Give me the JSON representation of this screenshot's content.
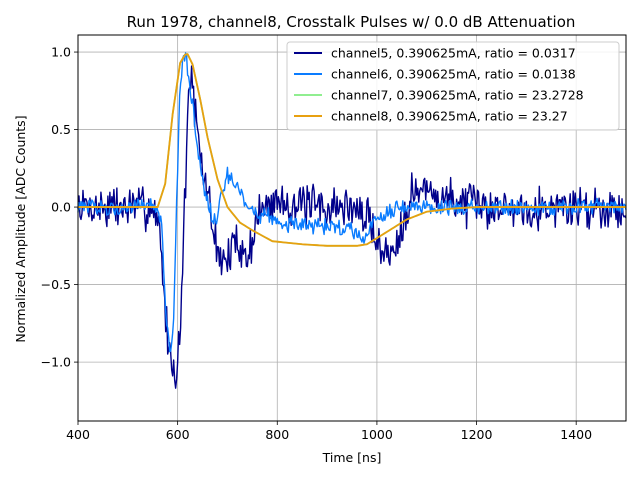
{
  "chart_data": {
    "type": "line",
    "title": "Run 1978, channel8, Crosstalk Pulses w/ 0.0 dB Attenuation",
    "xlabel": "Time [ns]",
    "ylabel": "Normalized Amplitude [ADC Counts]",
    "xlim": [
      400,
      1500
    ],
    "ylim": [
      -1.38,
      1.11
    ],
    "xticks": [
      400,
      600,
      800,
      1000,
      1200,
      1400
    ],
    "xtick_labels": [
      "400",
      "600",
      "800",
      "1000",
      "1200",
      "1400"
    ],
    "yticks": [
      -1.0,
      -0.5,
      0.0,
      0.5,
      1.0
    ],
    "ytick_labels": [
      "−1.0",
      "−0.5",
      "0.0",
      "0.5",
      "1.0"
    ],
    "grid": true,
    "legend_position": "top-right",
    "series": [
      {
        "name": "channel5, 0.390625mA, ratio = 0.0317",
        "color": "#00008b",
        "noise": 0.11,
        "points": [
          [
            400,
            0
          ],
          [
            550,
            0
          ],
          [
            565,
            -0.15
          ],
          [
            575,
            -0.7
          ],
          [
            585,
            -0.95
          ],
          [
            595,
            -1.1
          ],
          [
            605,
            -0.8
          ],
          [
            612,
            -0.2
          ],
          [
            618,
            0.4
          ],
          [
            625,
            0.9
          ],
          [
            632,
            0.7
          ],
          [
            645,
            0.3
          ],
          [
            660,
            0.1
          ],
          [
            680,
            -0.3
          ],
          [
            700,
            -0.35
          ],
          [
            720,
            -0.2
          ],
          [
            740,
            -0.35
          ],
          [
            760,
            -0.05
          ],
          [
            800,
            0.05
          ],
          [
            850,
            0.0
          ],
          [
            900,
            0.0
          ],
          [
            950,
            0.0
          ],
          [
            990,
            -0.1
          ],
          [
            1010,
            -0.3
          ],
          [
            1030,
            -0.3
          ],
          [
            1050,
            -0.1
          ],
          [
            1070,
            0.1
          ],
          [
            1100,
            0.1
          ],
          [
            1150,
            0.05
          ],
          [
            1200,
            0.0
          ],
          [
            1300,
            0.0
          ],
          [
            1500,
            0.0
          ]
        ]
      },
      {
        "name": "channel6, 0.390625mA, ratio = 0.0138",
        "color": "#0a7cff",
        "noise": 0.04,
        "points": [
          [
            400,
            0
          ],
          [
            560,
            0
          ],
          [
            568,
            -0.15
          ],
          [
            577,
            -0.7
          ],
          [
            585,
            -0.95
          ],
          [
            592,
            -0.75
          ],
          [
            598,
            0.0
          ],
          [
            604,
            0.7
          ],
          [
            610,
            0.98
          ],
          [
            618,
            0.95
          ],
          [
            628,
            0.7
          ],
          [
            640,
            0.4
          ],
          [
            655,
            0.1
          ],
          [
            668,
            -0.05
          ],
          [
            678,
            -0.1
          ],
          [
            690,
            0.1
          ],
          [
            700,
            0.2
          ],
          [
            712,
            0.15
          ],
          [
            725,
            0.1
          ],
          [
            740,
            0.0
          ],
          [
            760,
            -0.05
          ],
          [
            780,
            -0.05
          ],
          [
            800,
            -0.1
          ],
          [
            850,
            -0.12
          ],
          [
            900,
            -0.12
          ],
          [
            950,
            -0.15
          ],
          [
            975,
            -0.2
          ],
          [
            990,
            -0.1
          ],
          [
            1010,
            -0.05
          ],
          [
            1040,
            0.0
          ],
          [
            1080,
            0.0
          ],
          [
            1120,
            0.0
          ],
          [
            1200,
            0.0
          ],
          [
            1500,
            0.0
          ]
        ]
      },
      {
        "name": "channel7, 0.390625mA, ratio = 23.2728",
        "color": "#90ee90",
        "noise": 0,
        "points": [
          [
            400,
            0
          ],
          [
            560,
            0
          ],
          [
            575,
            0.15
          ],
          [
            590,
            0.6
          ],
          [
            605,
            0.93
          ],
          [
            618,
            1.0
          ],
          [
            630,
            0.92
          ],
          [
            645,
            0.7
          ],
          [
            660,
            0.45
          ],
          [
            680,
            0.18
          ],
          [
            700,
            0.0
          ],
          [
            725,
            -0.1
          ],
          [
            750,
            -0.15
          ],
          [
            790,
            -0.22
          ],
          [
            850,
            -0.24
          ],
          [
            900,
            -0.25
          ],
          [
            960,
            -0.25
          ],
          [
            980,
            -0.24
          ],
          [
            1000,
            -0.2
          ],
          [
            1030,
            -0.14
          ],
          [
            1060,
            -0.08
          ],
          [
            1100,
            -0.03
          ],
          [
            1150,
            -0.01
          ],
          [
            1200,
            0.0
          ],
          [
            1500,
            0.0
          ]
        ]
      },
      {
        "name": "channel8, 0.390625mA, ratio = 23.27",
        "color": "#e8a010",
        "noise": 0,
        "points": [
          [
            400,
            0
          ],
          [
            560,
            0
          ],
          [
            575,
            0.15
          ],
          [
            590,
            0.6
          ],
          [
            605,
            0.93
          ],
          [
            618,
            1.0
          ],
          [
            630,
            0.92
          ],
          [
            645,
            0.7
          ],
          [
            660,
            0.45
          ],
          [
            680,
            0.18
          ],
          [
            700,
            0.0
          ],
          [
            725,
            -0.1
          ],
          [
            750,
            -0.15
          ],
          [
            790,
            -0.22
          ],
          [
            850,
            -0.24
          ],
          [
            900,
            -0.25
          ],
          [
            960,
            -0.25
          ],
          [
            980,
            -0.24
          ],
          [
            1000,
            -0.2
          ],
          [
            1030,
            -0.14
          ],
          [
            1060,
            -0.08
          ],
          [
            1100,
            -0.03
          ],
          [
            1150,
            -0.01
          ],
          [
            1200,
            0.0
          ],
          [
            1500,
            0.0
          ]
        ]
      }
    ]
  }
}
